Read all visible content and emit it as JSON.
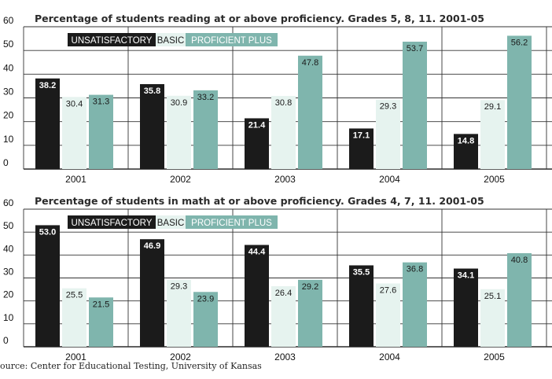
{
  "colors": {
    "unsatisfactory": "#1b1b1b",
    "basic": "#e6f3ef",
    "proficient_plus": "#7fb5ad",
    "grid": "#333333"
  },
  "legend_labels": {
    "unsatisfactory": "UNSATISFACTORY",
    "basic": "BASIC",
    "proficient_plus": "PROFICIENT PLUS"
  },
  "source": "ource: Center for Educational Testing, University of Kansas",
  "chart_data": [
    {
      "type": "bar",
      "title": "Percentage of students reading at or above proficiency. Grades 5, 8, 11. 2001-05",
      "categories": [
        "2001",
        "2002",
        "2003",
        "2004",
        "2005"
      ],
      "yticks": [
        "0",
        "10",
        "20",
        "30",
        "40",
        "50",
        "60"
      ],
      "ylim": [
        0,
        60
      ],
      "legend_position": "top-left",
      "series": [
        {
          "name": "UNSATISFACTORY",
          "key": "unsatisfactory",
          "values": [
            38.2,
            35.8,
            21.4,
            17.1,
            14.8
          ],
          "labels": [
            "38.2",
            "35.8",
            "21.4",
            "17.1",
            "14.8"
          ]
        },
        {
          "name": "BASIC",
          "key": "basic",
          "values": [
            30.4,
            30.9,
            30.8,
            29.3,
            29.1
          ],
          "labels": [
            "30.4",
            "30.9",
            "30.8",
            "29.3",
            "29.1"
          ]
        },
        {
          "name": "PROFICIENT PLUS",
          "key": "proficient_plus",
          "values": [
            31.3,
            33.2,
            47.8,
            53.7,
            56.2
          ],
          "labels": [
            "31.3",
            "33.2",
            "47.8",
            "53.7",
            "56.2"
          ]
        }
      ]
    },
    {
      "type": "bar",
      "title": "Percentage of students in math at or above proficiency. Grades 4, 7, 11. 2001-05",
      "categories": [
        "2001",
        "2002",
        "2003",
        "2004",
        "2005"
      ],
      "yticks": [
        "0",
        "10",
        "20",
        "30",
        "40",
        "50",
        "60"
      ],
      "ylim": [
        0,
        60
      ],
      "legend_position": "top-left",
      "series": [
        {
          "name": "UNSATISFACTORY",
          "key": "unsatisfactory",
          "values": [
            53.0,
            46.9,
            44.4,
            35.5,
            34.1
          ],
          "labels": [
            "53.0",
            "46.9",
            "44.4",
            "35.5",
            "34.1"
          ]
        },
        {
          "name": "BASIC",
          "key": "basic",
          "values": [
            25.5,
            29.3,
            26.4,
            27.6,
            25.1
          ],
          "labels": [
            "25.5",
            "29.3",
            "26.4",
            "27.6",
            "25.1"
          ]
        },
        {
          "name": "PROFICIENT PLUS",
          "key": "proficient_plus",
          "values": [
            21.5,
            23.9,
            29.2,
            36.8,
            40.8
          ],
          "labels": [
            "21.5",
            "23.9",
            "29.2",
            "36.8",
            "40.8"
          ]
        }
      ]
    }
  ]
}
